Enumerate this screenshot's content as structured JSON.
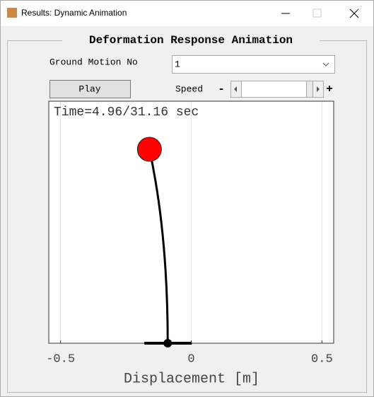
{
  "window": {
    "title": "Results: Dynamic Animation"
  },
  "panel": {
    "title": "Deformation Response Animation",
    "ground_motion_label": "Ground Motion No",
    "ground_motion_value": "1",
    "play_button": "Play",
    "speed_label": "Speed",
    "speed_minus": "-",
    "speed_plus": "+"
  },
  "chart_data": {
    "type": "deformation",
    "annotation": "Time=4.96/31.16 sec",
    "xlabel": "Displacement [m]",
    "xlim": [
      -0.545,
      0.545
    ],
    "xticks": [
      -0.5,
      0,
      0.5
    ],
    "grid": true,
    "ground_displacement": -0.09,
    "mass_displacement": -0.16,
    "mass_color": "#ff0000"
  }
}
